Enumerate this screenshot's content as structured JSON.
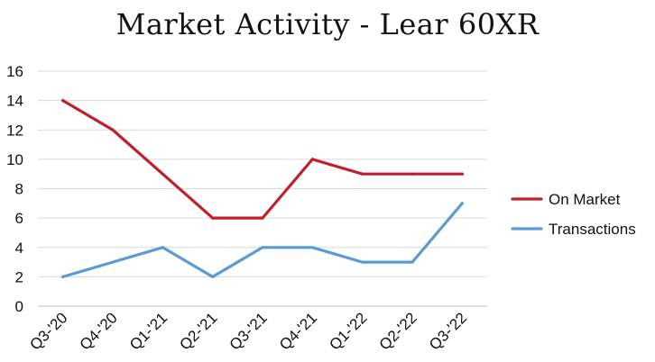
{
  "chart_data": {
    "type": "line",
    "title": "Market Activity - Lear 60XR",
    "xlabel": "",
    "ylabel": "",
    "categories": [
      "Q3-'20",
      "Q4-'20",
      "Q1-'21",
      "Q2-'21",
      "Q3-'21",
      "Q4-'21",
      "Q1-'22",
      "Q2-'22",
      "Q3-'22"
    ],
    "ylim": [
      0,
      16
    ],
    "yticks": [
      0,
      2,
      4,
      6,
      8,
      10,
      12,
      14,
      16
    ],
    "grid": true,
    "legend_position": "right",
    "series": [
      {
        "name": "On Market",
        "color": "#C0202B",
        "values": [
          14,
          12,
          9,
          6,
          6,
          10,
          9,
          9,
          9
        ]
      },
      {
        "name": "Transactions",
        "color": "#5B9BD5",
        "values": [
          2,
          3,
          4,
          2,
          4,
          4,
          3,
          3,
          7
        ]
      }
    ]
  }
}
